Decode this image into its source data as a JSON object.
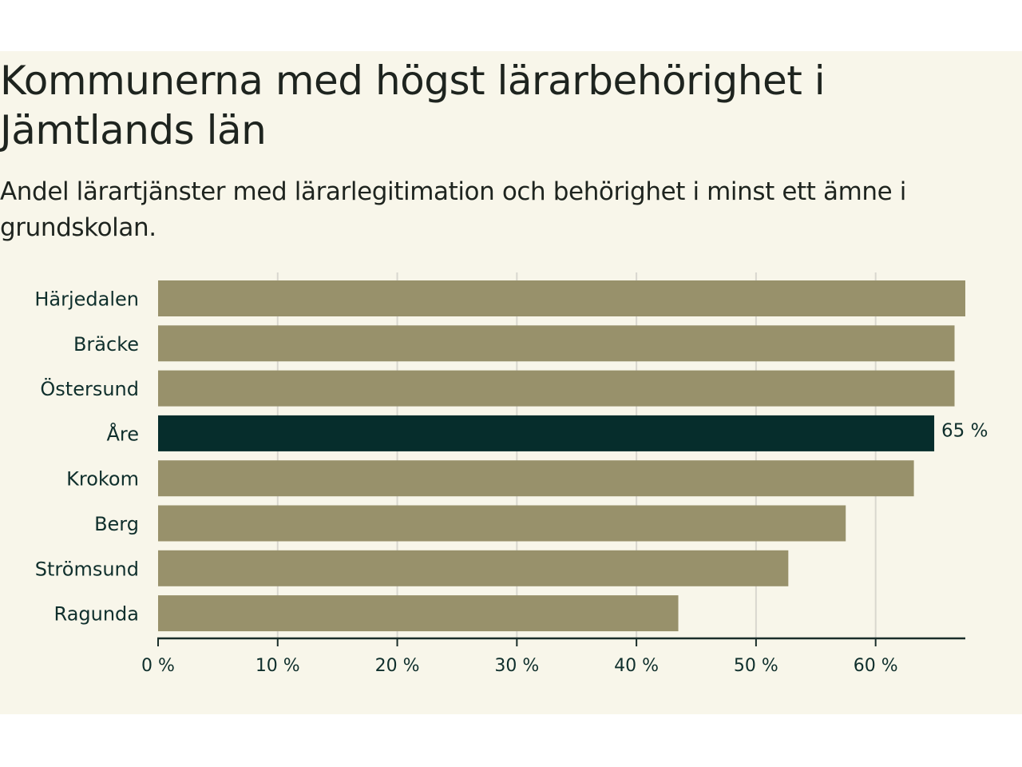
{
  "title": "Kommunerna med högst lärarbehörighet i Jämtlands län",
  "subtitle": "Andel lärartjänster med lärarlegitimation och behörighet i minst ett ämne i grundskolan.",
  "colors": {
    "background": "#f8f6ea",
    "bar": "#98916b",
    "highlight": "#062d2c",
    "grid": "#d9d7cf",
    "axis": "#1a2e2a",
    "text": "#0f2f2c"
  },
  "chart_data": {
    "type": "bar",
    "orientation": "horizontal",
    "categories": [
      "Härjedalen",
      "Bräcke",
      "Östersund",
      "Åre",
      "Krokom",
      "Berg",
      "Strömsund",
      "Ragunda"
    ],
    "values": [
      67.5,
      66.6,
      66.6,
      64.9,
      63.2,
      57.5,
      52.7,
      43.5
    ],
    "highlight": "Åre",
    "data_labels": {
      "Åre": "65 %"
    },
    "xlim": [
      0,
      67.5
    ],
    "xticks": [
      0,
      10,
      20,
      30,
      40,
      50,
      60
    ],
    "xtick_labels": [
      "0 %",
      "10 %",
      "20 %",
      "30 %",
      "40 %",
      "50 %",
      "60 %"
    ],
    "grid": true
  }
}
